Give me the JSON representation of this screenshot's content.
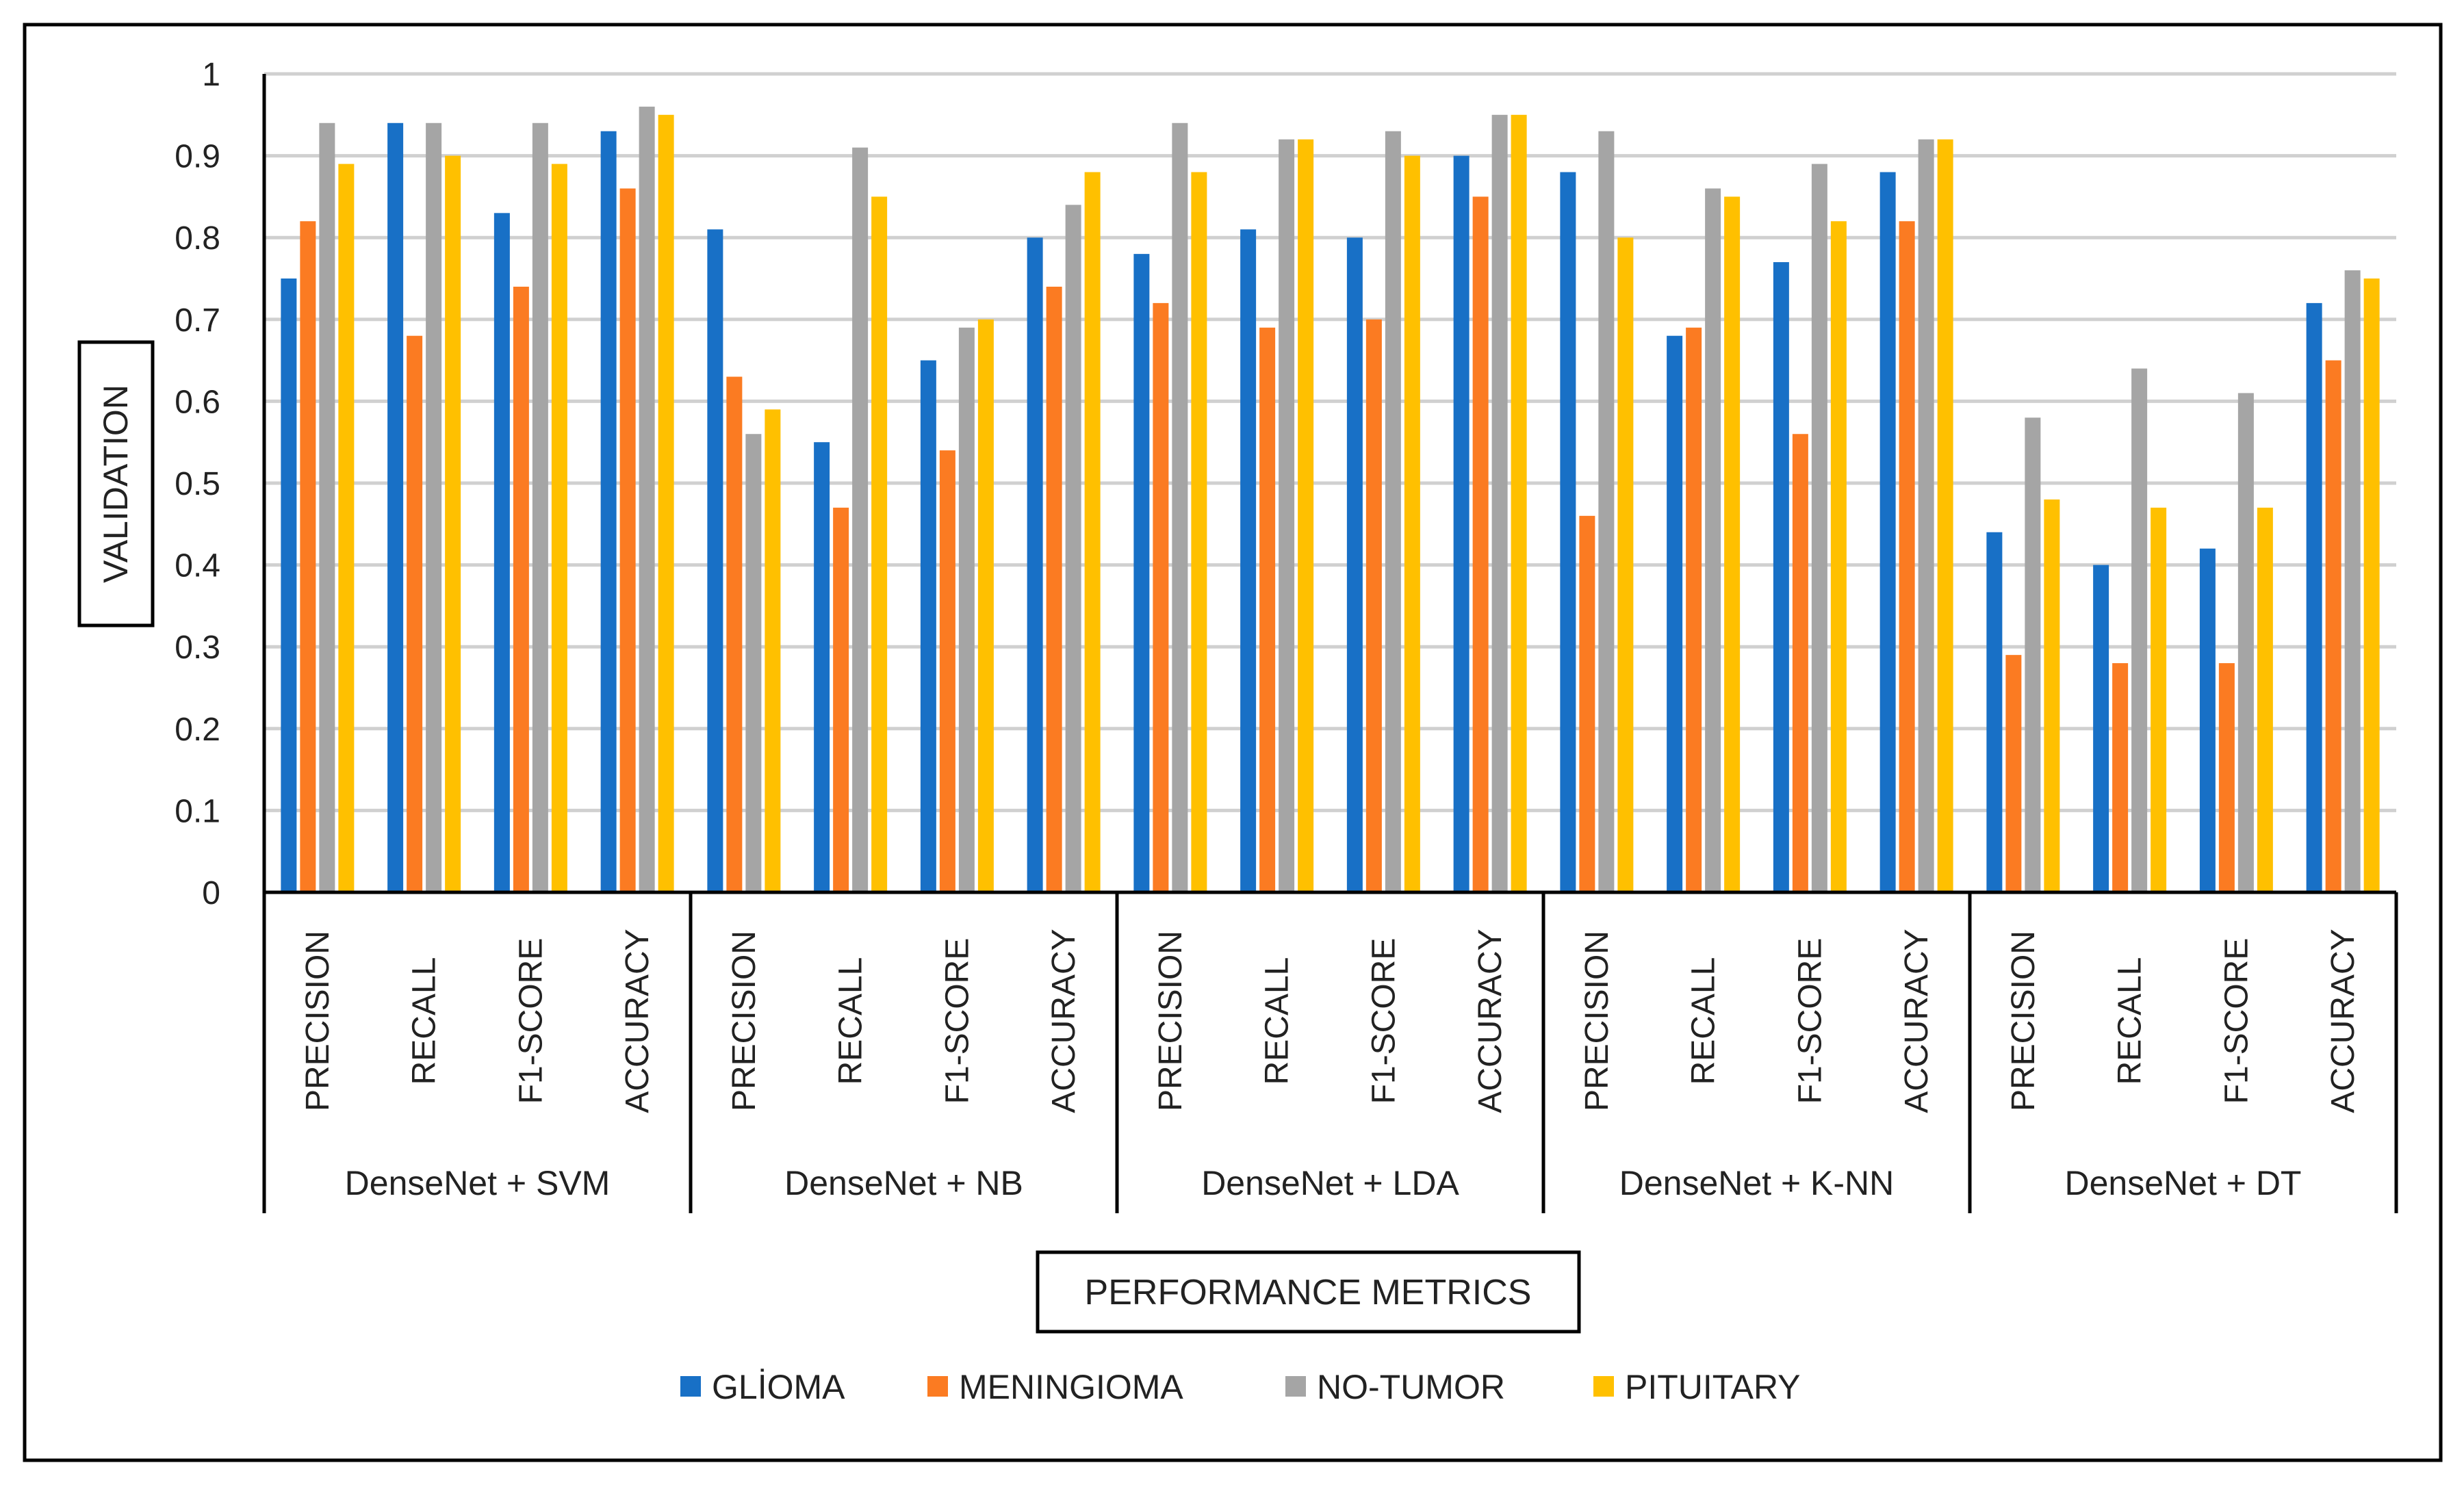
{
  "chart_data": {
    "type": "bar",
    "title": "",
    "xlabel": "PERFORMANCE METRICS",
    "ylabel": "VALIDATION",
    "ylim": [
      0,
      1
    ],
    "yticks": [
      "0",
      "0.1",
      "0.2",
      "0.3",
      "0.4",
      "0.5",
      "0.6",
      "0.7",
      "0.8",
      "0.9",
      "1"
    ],
    "grid": true,
    "legend_position": "bottom",
    "groups": [
      "DenseNet + SVM",
      "DenseNet + NB",
      "DenseNet + LDA",
      "DenseNet + K-NN",
      "DenseNet + DT"
    ],
    "metrics": [
      "PRECISION",
      "RECALL",
      "F1-SCORE",
      "ACCURACY"
    ],
    "series": [
      {
        "name": "GLİOMA",
        "color": "#1870C6",
        "values": [
          0.75,
          0.94,
          0.83,
          0.93,
          0.81,
          0.55,
          0.65,
          0.8,
          0.78,
          0.81,
          0.8,
          0.9,
          0.88,
          0.68,
          0.77,
          0.88,
          0.44,
          0.4,
          0.42,
          0.72
        ]
      },
      {
        "name": "MENINGIOMA",
        "color": "#FB7B22",
        "values": [
          0.82,
          0.68,
          0.74,
          0.86,
          0.63,
          0.47,
          0.54,
          0.74,
          0.72,
          0.69,
          0.7,
          0.85,
          0.46,
          0.69,
          0.56,
          0.82,
          0.29,
          0.28,
          0.28,
          0.65
        ]
      },
      {
        "name": "NO-TUMOR",
        "color": "#A5A5A5",
        "values": [
          0.94,
          0.94,
          0.94,
          0.96,
          0.56,
          0.91,
          0.69,
          0.84,
          0.94,
          0.92,
          0.93,
          0.95,
          0.93,
          0.86,
          0.89,
          0.92,
          0.58,
          0.64,
          0.61,
          0.76
        ]
      },
      {
        "name": "PITUITARY",
        "color": "#FFC000",
        "values": [
          0.89,
          0.9,
          0.89,
          0.95,
          0.59,
          0.85,
          0.7,
          0.88,
          0.88,
          0.92,
          0.9,
          0.95,
          0.8,
          0.85,
          0.82,
          0.92,
          0.48,
          0.47,
          0.47,
          0.75
        ]
      }
    ]
  }
}
